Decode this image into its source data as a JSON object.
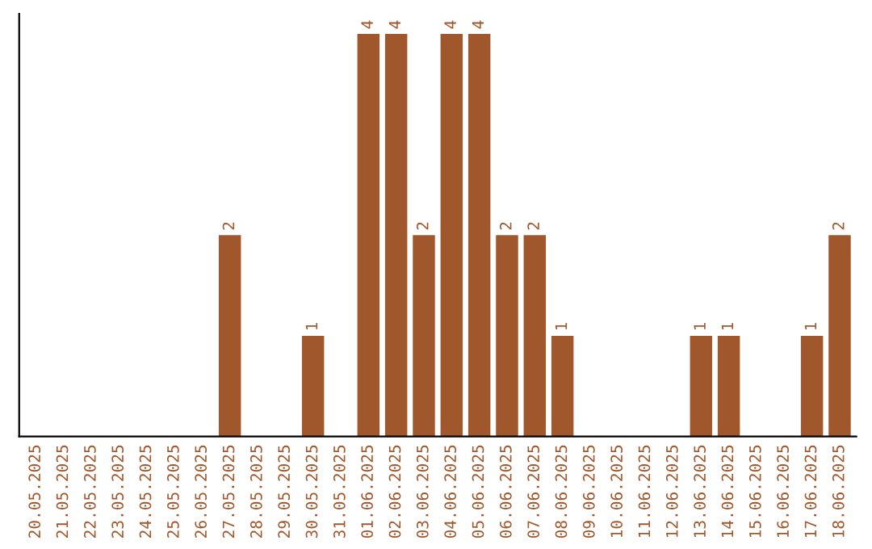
{
  "chart_data": {
    "type": "bar",
    "categories": [
      "20.05.2025",
      "21.05.2025",
      "22.05.2025",
      "23.05.2025",
      "24.05.2025",
      "25.05.2025",
      "26.05.2025",
      "27.05.2025",
      "28.05.2025",
      "29.05.2025",
      "30.05.2025",
      "31.05.2025",
      "01.06.2025",
      "02.06.2025",
      "03.06.2025",
      "04.06.2025",
      "05.06.2025",
      "06.06.2025",
      "07.06.2025",
      "08.06.2025",
      "09.06.2025",
      "10.06.2025",
      "11.06.2025",
      "12.06.2025",
      "13.06.2025",
      "14.06.2025",
      "15.06.2025",
      "16.06.2025",
      "17.06.2025",
      "18.06.2025"
    ],
    "values": [
      0,
      0,
      0,
      0,
      0,
      0,
      0,
      2,
      0,
      0,
      1,
      0,
      4,
      4,
      2,
      4,
      4,
      2,
      2,
      1,
      0,
      0,
      0,
      0,
      1,
      1,
      0,
      0,
      1,
      2
    ],
    "value_labels": [
      null,
      null,
      null,
      null,
      null,
      null,
      null,
      "2",
      null,
      null,
      "1",
      null,
      "4",
      "4",
      "2",
      "4",
      "4",
      "2",
      "2",
      "1",
      null,
      null,
      null,
      null,
      "1",
      "1",
      null,
      null,
      "1",
      "2"
    ],
    "color": "#a0572b",
    "tick_labels": "x",
    "grid": false,
    "legend": false
  }
}
